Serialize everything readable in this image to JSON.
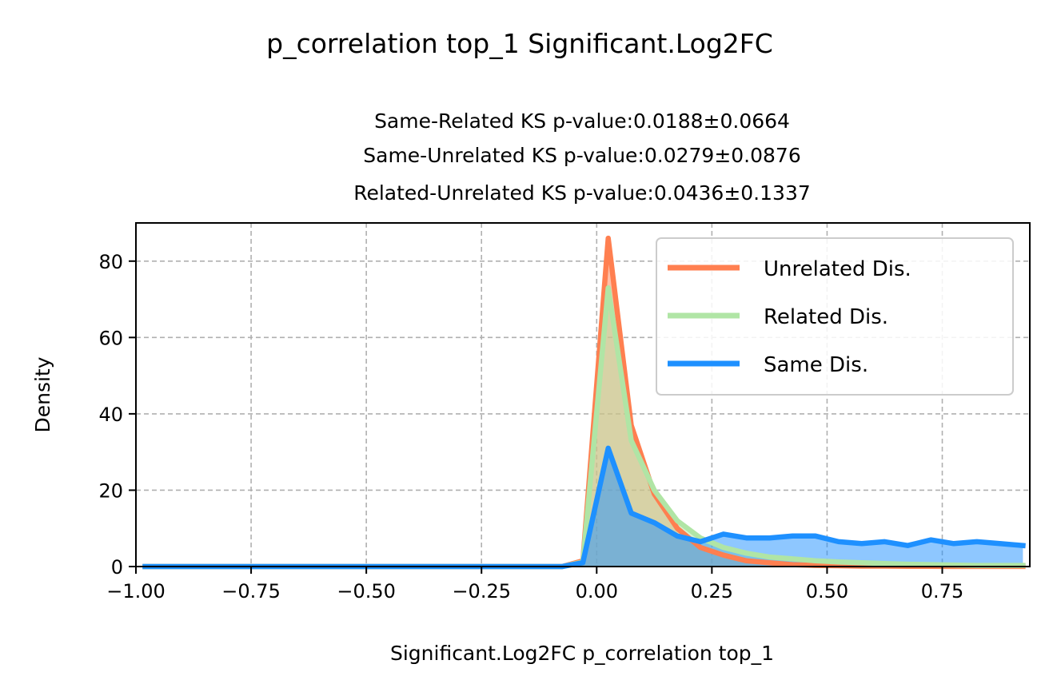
{
  "chart_data": {
    "type": "area",
    "title": "p_correlation top_1 Significant.Log2FC",
    "subtitle_lines": [
      "Same-Related KS p-value:0.0188±0.0664",
      "Same-Unrelated KS p-value:0.0279±0.0876",
      "Related-Unrelated KS p-value:0.0436±0.1337"
    ],
    "xlabel": "Significant.Log2FC p_correlation top_1",
    "ylabel": "Density",
    "xlim": [
      -1.0,
      0.94
    ],
    "ylim": [
      0,
      90
    ],
    "xticks": [
      -1.0,
      -0.75,
      -0.5,
      -0.25,
      0.0,
      0.25,
      0.5,
      0.75
    ],
    "xtick_labels": [
      "−1.00",
      "−0.75",
      "−0.50",
      "−0.25",
      "0.00",
      "0.25",
      "0.50",
      "0.75"
    ],
    "yticks": [
      0,
      20,
      40,
      60,
      80
    ],
    "ytick_labels": [
      "0",
      "20",
      "40",
      "60",
      "80"
    ],
    "grid": true,
    "legend_position": "top-right",
    "series": [
      {
        "name": "Unrelated Dis.",
        "color": "#FF7F50",
        "x": [
          -0.98,
          -0.075,
          -0.03,
          0.025,
          0.075,
          0.125,
          0.175,
          0.225,
          0.275,
          0.325,
          0.375,
          0.425,
          0.475,
          0.525,
          0.575,
          0.625,
          0.675,
          0.725,
          0.775,
          0.825,
          0.875,
          0.925
        ],
        "values": [
          0,
          0,
          1.5,
          86,
          37,
          19,
          10,
          5,
          3,
          1.5,
          1,
          0.5,
          0.3,
          0.2,
          0.1,
          0.1,
          0.05,
          0.05,
          0.02,
          0.02,
          0.02,
          0.02
        ]
      },
      {
        "name": "Related Dis.",
        "color": "#B0E5A5",
        "x": [
          -0.98,
          -0.075,
          -0.03,
          0.025,
          0.075,
          0.125,
          0.175,
          0.225,
          0.275,
          0.325,
          0.375,
          0.425,
          0.475,
          0.525,
          0.575,
          0.625,
          0.675,
          0.725,
          0.775,
          0.825,
          0.875,
          0.925
        ],
        "values": [
          0,
          0,
          1.2,
          73,
          33,
          20,
          12,
          7.5,
          5,
          3.5,
          2.5,
          2,
          1.5,
          1.2,
          1,
          0.8,
          0.6,
          0.5,
          0.4,
          0.3,
          0.3,
          0.3
        ]
      },
      {
        "name": "Same Dis.",
        "color": "#1E90FF",
        "x": [
          -0.98,
          -0.075,
          -0.03,
          0.025,
          0.075,
          0.125,
          0.175,
          0.225,
          0.275,
          0.325,
          0.375,
          0.425,
          0.475,
          0.525,
          0.575,
          0.625,
          0.675,
          0.725,
          0.775,
          0.825,
          0.875,
          0.925
        ],
        "values": [
          0,
          0,
          1.0,
          31,
          14,
          11.5,
          8,
          6.5,
          8.5,
          7.5,
          7.5,
          8,
          8,
          6.5,
          6,
          6.5,
          5.5,
          7,
          6,
          6.5,
          6,
          5.5
        ]
      }
    ]
  }
}
